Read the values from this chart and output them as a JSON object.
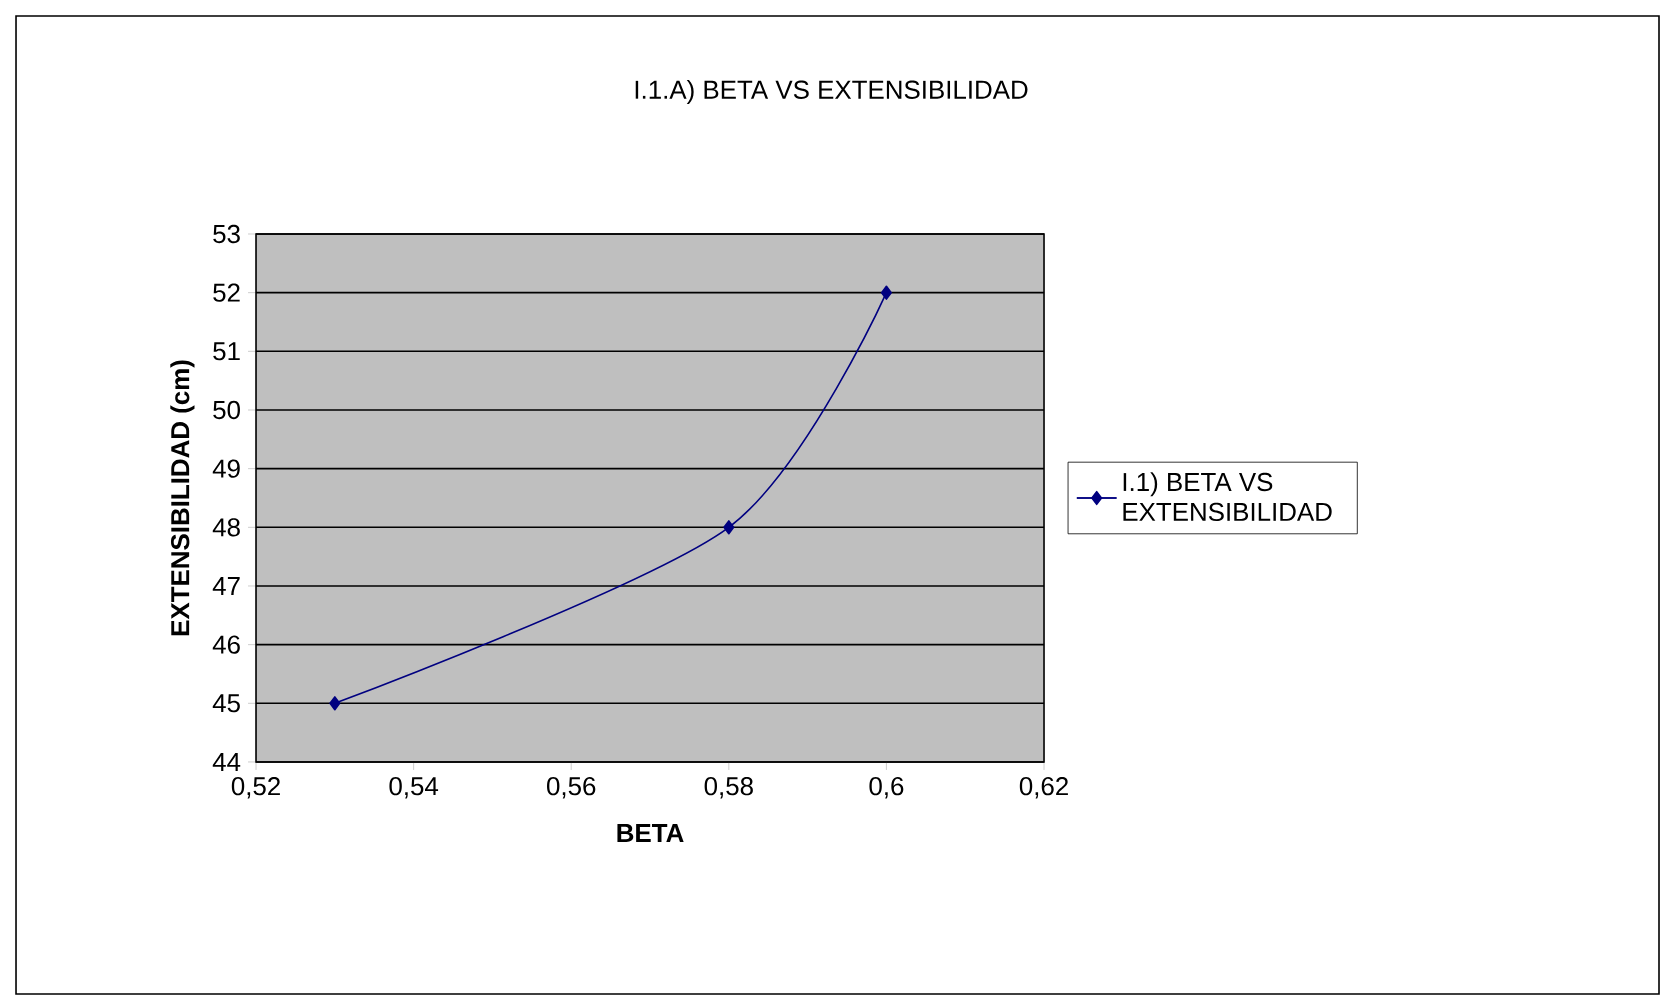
{
  "chart_data": {
    "type": "line",
    "title": "I.1.A) BETA VS EXTENSIBILIDAD",
    "xlabel": "BETA",
    "ylabel": "EXTENSIBILIDAD (cm)",
    "x": [
      0.53,
      0.58,
      0.6
    ],
    "series": [
      {
        "name": "I.1) BETA VS EXTENSIBILIDAD",
        "color": "#000080",
        "values": [
          45,
          48,
          52
        ]
      }
    ],
    "xlim": [
      0.52,
      0.62
    ],
    "xticks": [
      {
        "value": 0.52,
        "label": "0,52"
      },
      {
        "value": 0.54,
        "label": "0,54"
      },
      {
        "value": 0.56,
        "label": "0,56"
      },
      {
        "value": 0.58,
        "label": "0,58"
      },
      {
        "value": 0.6,
        "label": "0,6"
      },
      {
        "value": 0.62,
        "label": "0,62"
      }
    ],
    "ylim": [
      44,
      53
    ],
    "yticks": [
      44,
      45,
      46,
      47,
      48,
      49,
      50,
      51,
      52,
      53
    ],
    "grid": "y",
    "legend": "right",
    "marker": "diamond",
    "line_style": "solid"
  }
}
